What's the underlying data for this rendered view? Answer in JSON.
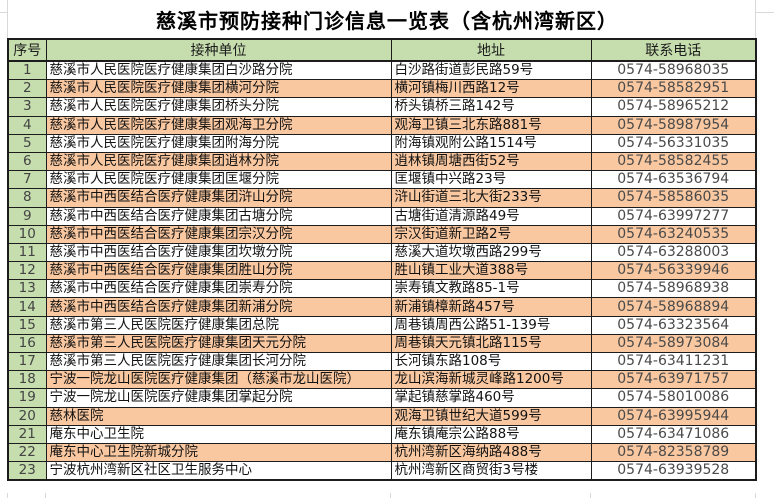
{
  "title": "慈溪市预防接种门诊信息一览表（含杭州湾新区）",
  "table": {
    "columns": [
      "序号",
      "接种单位",
      "地址",
      "联系电话"
    ],
    "rows": [
      {
        "no": "1",
        "unit": "慈溪市人民医院医疗健康集团白沙路分院",
        "address": "白沙路街道彭民路59号",
        "phone": "0574-58968035"
      },
      {
        "no": "2",
        "unit": "慈溪市人民医院医疗健康集团横河分院",
        "address": "横河镇梅川西路12号",
        "phone": "0574-58582951"
      },
      {
        "no": "3",
        "unit": "慈溪市人民医院医疗健康集团桥头分院",
        "address": "桥头镇桥三路142号",
        "phone": "0574-58965212"
      },
      {
        "no": "4",
        "unit": "慈溪市人民医院医疗健康集团观海卫分院",
        "address": "观海卫镇三北东路881号",
        "phone": "0574-58987954"
      },
      {
        "no": "5",
        "unit": "慈溪市人民医院医疗健康集团附海分院",
        "address": "附海镇观附公路1514号",
        "phone": "0574-56331035"
      },
      {
        "no": "6",
        "unit": "慈溪市人民医院医疗健康集团逍林分院",
        "address": "逍林镇周塘西街52号",
        "phone": "0574-58582455"
      },
      {
        "no": "7",
        "unit": "慈溪市人民医院医疗健康集团匡堰分院",
        "address": "匡堰镇中兴路23号",
        "phone": "0574-63536794"
      },
      {
        "no": "8",
        "unit": "慈溪市中西医结合医疗健康集团浒山分院",
        "address": "浒山街道三北大街233号",
        "phone": "0574-58586035"
      },
      {
        "no": "9",
        "unit": "慈溪市中西医结合医疗健康集团古塘分院",
        "address": "古塘街道清源路49号",
        "phone": "0574-63997277"
      },
      {
        "no": "10",
        "unit": "慈溪市中西医结合医疗健康集团宗汉分院",
        "address": "宗汉街道新卫路2号",
        "phone": "0574-63240535"
      },
      {
        "no": "11",
        "unit": "慈溪市中西医结合医疗健康集团坎墩分院",
        "address": "慈溪大道坎墩西路299号",
        "phone": "0574-63288003"
      },
      {
        "no": "12",
        "unit": "慈溪市中西医结合医疗健康集团胜山分院",
        "address": "胜山镇工业大道388号",
        "phone": "0574-56339946"
      },
      {
        "no": "13",
        "unit": "慈溪市中西医结合医疗健康集团崇寿分院",
        "address": "崇寿镇文教路85-1号",
        "phone": "0574-58968938"
      },
      {
        "no": "14",
        "unit": "慈溪市中西医结合医疗健康集团新浦分院",
        "address": "新浦镇樟新路457号",
        "phone": "0574-58968894"
      },
      {
        "no": "15",
        "unit": "慈溪市第三人民医院医疗健康集团总院",
        "address": "周巷镇周西公路51-139号",
        "phone": "0574-63323564"
      },
      {
        "no": "16",
        "unit": "慈溪市第三人民医院医疗健康集团天元分院",
        "address": "周巷镇天元镇北路115号",
        "phone": "0574-58973084"
      },
      {
        "no": "17",
        "unit": "慈溪市第三人民医院医疗健康集团长河分院",
        "address": "长河镇东路108号",
        "phone": "0574-63411231"
      },
      {
        "no": "18",
        "unit": "宁波一院龙山医院医疗健康集团（慈溪市龙山医院）",
        "address": "龙山滨海新城灵峰路1200号",
        "phone": "0574-63971757"
      },
      {
        "no": "19",
        "unit": "宁波一院龙山医院医疗健康集团掌起分院",
        "address": "掌起镇慈掌路460号",
        "phone": "0574-58010086"
      },
      {
        "no": "20",
        "unit": "慈林医院",
        "address": "观海卫镇世纪大道599号",
        "phone": "0574-63995944"
      },
      {
        "no": "21",
        "unit": "庵东中心卫生院",
        "address": "庵东镇庵宗公路88号",
        "phone": "0574-63471086"
      },
      {
        "no": "22",
        "unit": "庵东中心卫生院新城分院",
        "address": "杭州湾新区海纳路488号",
        "phone": "0574-82358789"
      },
      {
        "no": "23",
        "unit": "宁波杭州湾新区社区卫生服务中心",
        "address": "杭州湾新区商贸街3号楼",
        "phone": "0574-63939528"
      }
    ]
  },
  "colors": {
    "header_green": "#c6deae",
    "row_peach": "#fac8a0",
    "row_white": "#ffffff",
    "border": "#1c1c1c",
    "gridline": "#d9d9d9"
  }
}
